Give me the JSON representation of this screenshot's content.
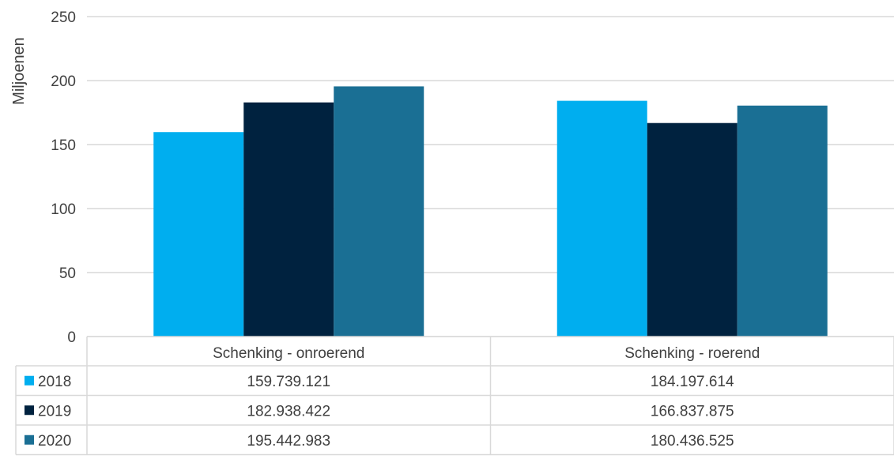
{
  "chart_data": {
    "type": "bar",
    "ylabel": "Miljoenen",
    "ylim": [
      0,
      250
    ],
    "yticks": [
      0,
      50,
      100,
      150,
      200,
      250
    ],
    "grid": true,
    "legend": "data-table-left",
    "categories": [
      "Schenking - onroerend",
      "Schenking - roerend"
    ],
    "series": [
      {
        "name": "2018",
        "color": "#00aeef",
        "values": [
          159.739121,
          184.197614
        ],
        "labels": [
          "159.739.121",
          "184.197.614"
        ]
      },
      {
        "name": "2019",
        "color": "#00223f",
        "values": [
          182.938422,
          166.837875
        ],
        "labels": [
          "182.938.422",
          "166.837.875"
        ]
      },
      {
        "name": "2020",
        "color": "#1a6f94",
        "values": [
          195.442983,
          180.436525
        ],
        "labels": [
          "195.442.983",
          "180.436.525"
        ]
      }
    ]
  }
}
